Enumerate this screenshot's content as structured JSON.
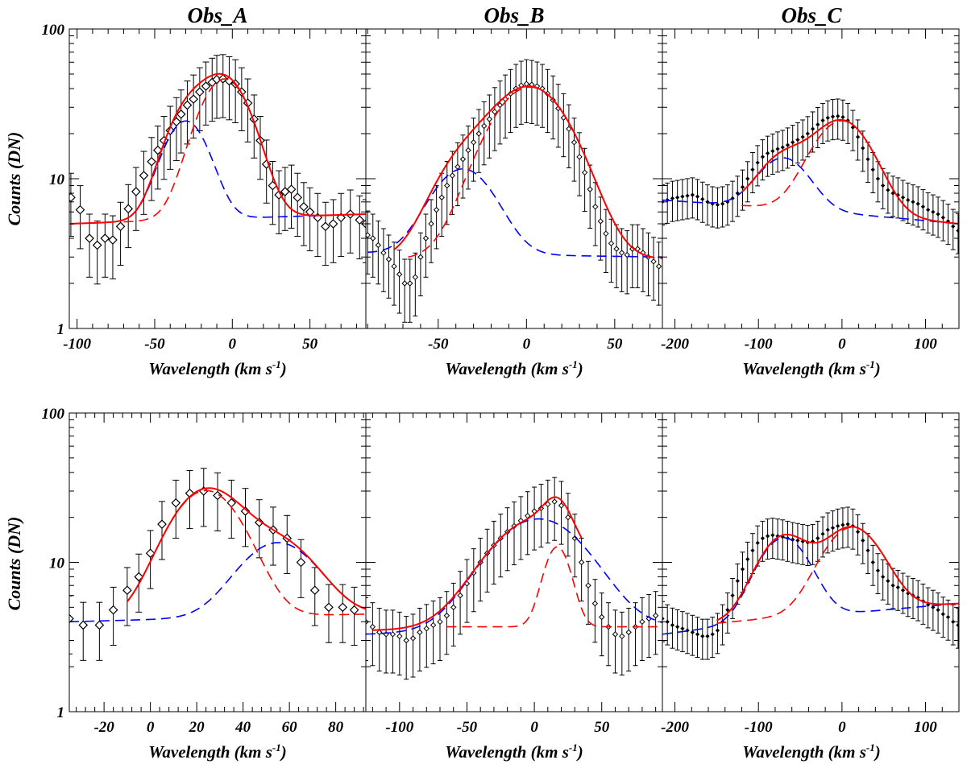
{
  "figure": {
    "column_titles": [
      "Obs_A",
      "Obs_B",
      "Obs_C"
    ],
    "ylabel": "Counts (DN)",
    "xlabel_main": "Wavelength (km s",
    "xlabel_sup": "-1",
    "xlabel_close": ")"
  },
  "colors": {
    "data": "#000000",
    "fit_total": "#ff0000",
    "component_red": "#ff0000",
    "component_blue": "#0000ff"
  },
  "chart_data": [
    {
      "type": "line",
      "title": "Obs_A",
      "row": 0,
      "col": 0,
      "marker": "open_diamond",
      "xlabel": "Wavelength (km s-1)",
      "ylabel": "Counts (DN)",
      "yscale": "log",
      "xlim": [
        -105,
        86
      ],
      "ylim": [
        1,
        100
      ],
      "xticks": [
        -100,
        -50,
        0,
        50
      ],
      "yticks": [
        1,
        10,
        100
      ],
      "points": {
        "x": [
          -104,
          -98,
          -92,
          -87,
          -82,
          -77,
          -72,
          -67,
          -62,
          -57,
          -52,
          -48,
          -44,
          -40,
          -36,
          -33,
          -29,
          -25,
          -21,
          -17,
          -13,
          -10,
          -6,
          -2,
          2,
          6,
          10,
          14,
          18,
          22,
          26,
          30,
          34,
          38,
          42,
          46,
          50,
          55,
          60,
          65,
          70,
          76,
          82,
          86
        ],
        "y": [
          7.5,
          6.2,
          4.0,
          3.6,
          4.0,
          3.9,
          4.8,
          6.3,
          8.2,
          10.5,
          13.0,
          15.5,
          18.0,
          21.0,
          24.0,
          27.0,
          31.0,
          34.0,
          38.0,
          41.5,
          44.0,
          46.0,
          46.5,
          45.0,
          43.0,
          38.0,
          32.0,
          25.0,
          18.0,
          12.5,
          9.0,
          7.8,
          8.2,
          8.5,
          7.5,
          6.5,
          6.0,
          5.5,
          4.8,
          5.0,
          5.5,
          5.8,
          5.3,
          5.0
        ],
        "err_frac": 0.45
      },
      "series": [
        {
          "name": "total fit",
          "color": "#ff0000",
          "style": "solid",
          "x_range": [
            -104,
            86
          ],
          "baseline": [
            5.0,
            5.8
          ],
          "components": [
            [
              19,
              -30,
              13
            ],
            [
              41,
              -5,
              15
            ]
          ]
        },
        {
          "name": "component 1",
          "color": "#0000ff",
          "style": "dashed",
          "x_range": [
            -104,
            86
          ],
          "baseline": [
            5.0,
            5.8
          ],
          "components": [
            [
              19,
              -30,
              13
            ]
          ]
        },
        {
          "name": "component 2",
          "color": "#ff0000",
          "style": "dashed",
          "x_range": [
            -70,
            86
          ],
          "baseline": [
            5.0,
            5.8
          ],
          "components": [
            [
              41,
              -5,
              15
            ]
          ]
        }
      ]
    },
    {
      "type": "line",
      "title": "Obs_B",
      "row": 0,
      "col": 1,
      "marker": "small_diamond",
      "xlabel": "Wavelength (km s-1)",
      "ylabel": "Counts (DN)",
      "yscale": "log",
      "xlim": [
        -91,
        77
      ],
      "ylim": [
        1,
        100
      ],
      "xticks": [
        -50,
        0,
        50
      ],
      "yticks": [
        1,
        10,
        100
      ],
      "points": {
        "x": [
          -90,
          -87,
          -84,
          -81,
          -78,
          -75,
          -72,
          -69,
          -66,
          -63,
          -60,
          -57,
          -54,
          -51,
          -48,
          -45,
          -42,
          -39,
          -36,
          -33,
          -30,
          -27,
          -24,
          -21,
          -18,
          -15,
          -12,
          -9,
          -6,
          -3,
          0,
          3,
          6,
          9,
          12,
          15,
          18,
          21,
          24,
          27,
          30,
          33,
          36,
          39,
          42,
          45,
          48,
          51,
          54,
          57,
          60,
          63,
          66,
          69,
          72,
          75
        ],
        "y": [
          4.2,
          4.0,
          3.6,
          3.2,
          2.9,
          2.6,
          2.3,
          2.0,
          2.0,
          2.2,
          3.0,
          4.0,
          5.0,
          6.2,
          7.5,
          9.0,
          10.5,
          12.0,
          13.5,
          15.5,
          17.5,
          20.0,
          22.5,
          25.0,
          28.0,
          31.0,
          34.0,
          37.0,
          40.0,
          42.0,
          43.0,
          42.5,
          41.5,
          40.0,
          37.0,
          33.5,
          29.5,
          25.5,
          21.5,
          17.5,
          14.0,
          11.0,
          8.5,
          6.5,
          5.2,
          4.3,
          3.7,
          3.4,
          3.2,
          3.1,
          3.4,
          3.4,
          3.2,
          3.0,
          2.8,
          2.6
        ],
        "err_frac": 0.45
      },
      "series": [
        {
          "name": "total fit",
          "color": "#ff0000",
          "style": "solid",
          "x_range": [
            -75,
            72
          ],
          "baseline": [
            2.9,
            2.9
          ],
          "components": [
            [
              8.5,
              -36,
              16
            ],
            [
              38,
              2,
              20
            ]
          ]
        },
        {
          "name": "component 1",
          "color": "#0000ff",
          "style": "dashed",
          "x_range": [
            -90,
            77
          ],
          "baseline": [
            3.2,
            3.0
          ],
          "components": [
            [
              8.5,
              -36,
              16
            ]
          ]
        },
        {
          "name": "component 2",
          "color": "#ff0000",
          "style": "dashed",
          "x_range": [
            -67,
            77
          ],
          "baseline": [
            2.9,
            2.9
          ],
          "components": [
            [
              38,
              2,
              20
            ]
          ]
        }
      ]
    },
    {
      "type": "line",
      "title": "Obs_C",
      "row": 0,
      "col": 2,
      "marker": "dot",
      "xlabel": "Wavelength (km s-1)",
      "ylabel": "Counts (DN)",
      "yscale": "log",
      "xlim": [
        -215,
        140
      ],
      "ylim": [
        1,
        100
      ],
      "xticks": [
        -200,
        -100,
        0,
        100
      ],
      "yticks": [
        1,
        10,
        100
      ],
      "points": {
        "x": [
          -215,
          -209,
          -203,
          -197,
          -191,
          -185,
          -179,
          -173,
          -167,
          -161,
          -155,
          -149,
          -143,
          -137,
          -131,
          -125,
          -119,
          -113,
          -107,
          -101,
          -95,
          -89,
          -83,
          -77,
          -71,
          -65,
          -59,
          -53,
          -47,
          -41,
          -35,
          -29,
          -23,
          -17,
          -11,
          -5,
          1,
          7,
          13,
          19,
          25,
          31,
          37,
          43,
          49,
          55,
          61,
          67,
          73,
          79,
          85,
          91,
          97,
          103,
          109,
          115,
          121,
          127,
          133,
          139
        ],
        "y": [
          7.0,
          7.2,
          7.4,
          7.5,
          7.6,
          7.7,
          7.8,
          7.6,
          7.3,
          7.0,
          6.8,
          6.7,
          6.8,
          7.0,
          7.4,
          8.0,
          8.8,
          10.0,
          11.5,
          12.8,
          14.0,
          14.8,
          15.3,
          15.8,
          16.2,
          16.8,
          17.5,
          18.2,
          19.0,
          20.0,
          21.5,
          23.0,
          24.5,
          25.5,
          26.0,
          26.2,
          25.8,
          24.5,
          22.0,
          19.0,
          16.0,
          13.5,
          11.5,
          10.0,
          9.0,
          8.4,
          8.0,
          7.8,
          7.5,
          7.2,
          7.0,
          6.8,
          6.5,
          6.2,
          6.0,
          5.8,
          5.5,
          5.2,
          4.8,
          4.5
        ],
        "err_frac": 0.3
      },
      "series": [
        {
          "name": "total fit",
          "color": "#ff0000",
          "style": "solid",
          "x_range": [
            -120,
            140
          ],
          "baseline": [
            7.2,
            5.0
          ],
          "components": [
            [
              7.5,
              -70,
              28
            ],
            [
              18.5,
              0,
              32
            ]
          ]
        },
        {
          "name": "component 1",
          "color": "#0000ff",
          "style": "dashed",
          "x_range": [
            -215,
            140
          ],
          "baseline": [
            7.2,
            5.0
          ],
          "components": [
            [
              7.5,
              -70,
              28
            ]
          ]
        },
        {
          "name": "component 2",
          "color": "#ff0000",
          "style": "dashed",
          "x_range": [
            -120,
            10
          ],
          "baseline": [
            7.2,
            5.0
          ],
          "components": [
            [
              18.5,
              0,
              32
            ]
          ]
        }
      ]
    },
    {
      "type": "line",
      "title": "",
      "row": 1,
      "col": 0,
      "marker": "open_diamond",
      "xlabel": "Wavelength (km s-1)",
      "ylabel": "Counts (DN)",
      "yscale": "log",
      "xlim": [
        -35,
        93
      ],
      "ylim": [
        1,
        100
      ],
      "xticks": [
        -20,
        0,
        20,
        40,
        60,
        80
      ],
      "yticks": [
        1,
        10,
        100
      ],
      "points": {
        "x": [
          -35,
          -29,
          -22,
          -16,
          -10,
          -5,
          0,
          5,
          11,
          17,
          23,
          29,
          35,
          41,
          47,
          53,
          59,
          65,
          71,
          77,
          83,
          88
        ],
        "y": [
          4.2,
          3.8,
          3.8,
          4.8,
          6.5,
          8.0,
          11.5,
          18.0,
          25.0,
          29.0,
          30.0,
          28.0,
          25.0,
          22.0,
          18.5,
          16.5,
          14.5,
          10.0,
          6.5,
          5.0,
          5.0,
          4.8
        ],
        "err_frac": 0.42
      },
      "series": [
        {
          "name": "total fit",
          "color": "#ff0000",
          "style": "solid",
          "x_range": [
            -10,
            93
          ],
          "baseline": [
            4.0,
            4.5
          ],
          "components": [
            [
              26,
              24,
              14
            ],
            [
              9.2,
              55,
              15
            ]
          ]
        },
        {
          "name": "component 1",
          "color": "#ff0000",
          "style": "dashed",
          "x_range": [
            -10,
            93
          ],
          "baseline": [
            4.0,
            4.5
          ],
          "components": [
            [
              26,
              24,
              14
            ]
          ]
        },
        {
          "name": "component 2",
          "color": "#0000ff",
          "style": "dashed",
          "x_range": [
            -35,
            93
          ],
          "baseline": [
            4.0,
            4.5
          ],
          "components": [
            [
              9.2,
              55,
              15
            ]
          ]
        }
      ]
    },
    {
      "type": "line",
      "title": "",
      "row": 1,
      "col": 1,
      "marker": "small_diamond",
      "xlabel": "Wavelength (km s-1)",
      "ylabel": "Counts (DN)",
      "yscale": "log",
      "xlim": [
        -125,
        95
      ],
      "ylim": [
        1,
        100
      ],
      "xticks": [
        -100,
        -50,
        0,
        50
      ],
      "yticks": [
        1,
        10,
        100
      ],
      "points": {
        "x": [
          -125,
          -120,
          -115,
          -110,
          -105,
          -100,
          -95,
          -90,
          -85,
          -80,
          -75,
          -70,
          -65,
          -60,
          -55,
          -50,
          -45,
          -40,
          -35,
          -30,
          -25,
          -20,
          -15,
          -10,
          -5,
          0,
          5,
          10,
          15,
          20,
          25,
          30,
          35,
          40,
          45,
          50,
          55,
          60,
          65,
          70,
          75,
          80,
          85,
          90
        ],
        "y": [
          4.0,
          3.7,
          3.4,
          3.3,
          3.3,
          3.2,
          3.0,
          3.1,
          3.4,
          3.6,
          3.8,
          4.0,
          4.4,
          5.0,
          6.0,
          7.2,
          8.5,
          10.0,
          11.5,
          13.0,
          14.5,
          16.0,
          17.5,
          19.0,
          20.5,
          22.0,
          23.0,
          24.5,
          25.5,
          24.0,
          20.0,
          14.5,
          10.0,
          7.0,
          5.3,
          4.3,
          3.7,
          3.3,
          3.2,
          3.4,
          3.7,
          4.0,
          4.2,
          4.4
        ],
        "err_frac": 0.45
      },
      "series": [
        {
          "name": "total fit",
          "color": "#ff0000",
          "style": "solid",
          "x_range": [
            -120,
            35
          ],
          "baseline": [
            3.5,
            3.7
          ],
          "components": [
            [
              16,
              3,
              32
            ],
            [
              9,
              17,
              9
            ]
          ]
        },
        {
          "name": "component 1",
          "color": "#0000ff",
          "style": "dashed",
          "x_range": [
            -125,
            95
          ],
          "baseline": [
            3.3,
            3.7
          ],
          "components": [
            [
              16,
              3,
              32
            ]
          ]
        },
        {
          "name": "component 2",
          "color": "#ff0000",
          "style": "dashed",
          "x_range": [
            -65,
            95
          ],
          "baseline": [
            3.7,
            3.7
          ],
          "components": [
            [
              9,
              17,
              9
            ]
          ]
        }
      ]
    },
    {
      "type": "line",
      "title": "",
      "row": 1,
      "col": 2,
      "marker": "dot",
      "xlabel": "Wavelength (km s-1)",
      "ylabel": "Counts (DN)",
      "yscale": "log",
      "xlim": [
        -215,
        140
      ],
      "ylim": [
        1,
        100
      ],
      "xticks": [
        -200,
        -100,
        0,
        100
      ],
      "yticks": [
        1,
        10,
        100
      ],
      "points": {
        "x": [
          -215,
          -209,
          -203,
          -197,
          -191,
          -185,
          -179,
          -173,
          -167,
          -161,
          -155,
          -149,
          -143,
          -137,
          -131,
          -125,
          -119,
          -113,
          -107,
          -101,
          -95,
          -89,
          -83,
          -77,
          -71,
          -65,
          -59,
          -53,
          -47,
          -41,
          -35,
          -29,
          -23,
          -17,
          -11,
          -5,
          1,
          7,
          13,
          19,
          25,
          31,
          37,
          43,
          49,
          55,
          61,
          67,
          73,
          79,
          85,
          91,
          97,
          103,
          109,
          115,
          121,
          127,
          133,
          139
        ],
        "y": [
          4.2,
          4.0,
          3.8,
          3.7,
          3.6,
          3.5,
          3.4,
          3.3,
          3.2,
          3.2,
          3.3,
          3.5,
          4.0,
          4.8,
          6.0,
          7.5,
          9.0,
          10.5,
          12.0,
          13.5,
          14.5,
          15.0,
          15.2,
          15.0,
          14.8,
          14.5,
          14.2,
          14.0,
          13.8,
          13.6,
          13.8,
          14.5,
          15.5,
          16.5,
          17.0,
          17.5,
          17.8,
          18.0,
          17.5,
          16.0,
          14.0,
          12.0,
          10.0,
          8.8,
          8.0,
          7.5,
          7.0,
          6.8,
          6.5,
          6.2,
          6.0,
          5.8,
          5.5,
          5.2,
          5.0,
          4.8,
          4.5,
          4.3,
          4.0,
          3.8
        ],
        "err_frac": 0.3
      },
      "series": [
        {
          "name": "total fit",
          "color": "#ff0000",
          "style": "solid",
          "x_range": [
            -150,
            140
          ],
          "baseline": [
            3.6,
            5.3
          ],
          "components": [
            [
              10.5,
              -70,
              28
            ],
            [
              12.5,
              12,
              32
            ]
          ]
        },
        {
          "name": "component 1",
          "color": "#0000ff",
          "style": "dashed",
          "x_range": [
            -215,
            140
          ],
          "baseline": [
            3.3,
            5.3
          ],
          "components": [
            [
              10.5,
              -70,
              28
            ]
          ]
        },
        {
          "name": "component 2",
          "color": "#ff0000",
          "style": "dashed",
          "x_range": [
            -150,
            140
          ],
          "baseline": [
            3.6,
            5.3
          ],
          "components": [
            [
              12.5,
              12,
              32
            ]
          ]
        }
      ]
    }
  ]
}
